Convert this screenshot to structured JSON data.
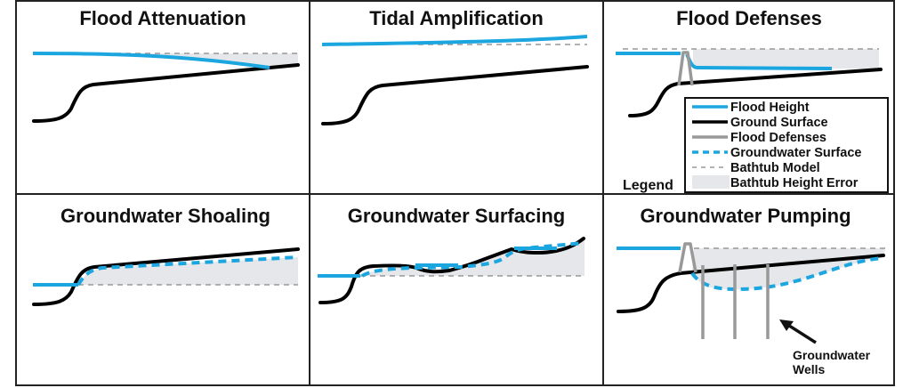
{
  "panels": [
    {
      "title": "Flood Attenuation"
    },
    {
      "title": "Tidal Amplification"
    },
    {
      "title": "Flood Defenses"
    },
    {
      "title": "Groundwater Shoaling"
    },
    {
      "title": "Groundwater Surfacing"
    },
    {
      "title": "Groundwater Pumping"
    }
  ],
  "legend": {
    "title": "Legend",
    "items": [
      {
        "label": "Flood Height",
        "style": "solid",
        "color": "#1ba6e0"
      },
      {
        "label": "Ground Surface",
        "style": "solid",
        "color": "#000000"
      },
      {
        "label": "Flood Defenses",
        "style": "solid",
        "color": "#999999"
      },
      {
        "label": "Groundwater Surface",
        "style": "dashed",
        "color": "#1ba6e0"
      },
      {
        "label": "Bathtub Model",
        "style": "dashed",
        "color": "#999999"
      },
      {
        "label": "Bathtub Height Error",
        "style": "fill",
        "color": "#e6e7ea"
      }
    ]
  },
  "annotations": {
    "wells_line1": "Groundwater",
    "wells_line2": "Wells"
  }
}
